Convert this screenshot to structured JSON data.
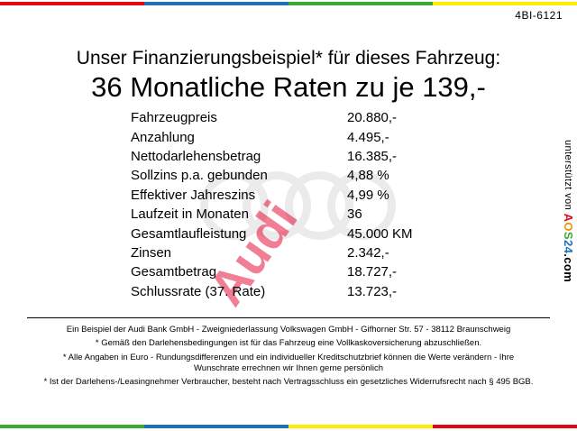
{
  "header": {
    "ref": "4BI-6121",
    "title": "Unser Finanzierungsbeispiel* für dieses Fahrzeug:",
    "subtitle": "36 Monatliche Raten zu je 139,-"
  },
  "table": {
    "rows": [
      {
        "label": "Fahrzeugpreis",
        "value": "20.880,-"
      },
      {
        "label": "Anzahlung",
        "value": "4.495,-"
      },
      {
        "label": "Nettodarlehensbetrag",
        "value": "16.385,-"
      },
      {
        "label": "Sollzins p.a. gebunden",
        "value": "4,88 %"
      },
      {
        "label": "Effektiver Jahreszins",
        "value": "4,99 %"
      },
      {
        "label": "Laufzeit in Monaten",
        "value": "36"
      },
      {
        "label": "Gesamtlaufleistung",
        "value": "45.000 KM"
      },
      {
        "label": "Zinsen",
        "value": "2.342,-"
      },
      {
        "label": "Gesamtbetrag",
        "value": "18.727,-"
      },
      {
        "label": "Schlussrate (37. Rate)",
        "value": "13.723,-"
      }
    ]
  },
  "watermark": {
    "text": "Audi",
    "text_color": "#e4002c",
    "rings_color": "#ebebeb"
  },
  "side": {
    "prefix": "unterstützt von ",
    "brand_letters": [
      {
        "ch": "A",
        "color": "#e30613"
      },
      {
        "ch": "O",
        "color": "#f39200"
      },
      {
        "ch": "S",
        "color": "#3aaa35"
      },
      {
        "ch": "2",
        "color": "#1d71b8"
      },
      {
        "ch": "4",
        "color": "#1d71b8"
      }
    ],
    "suffix": ".com"
  },
  "footer": {
    "lines": [
      "Ein Beispiel der Audi Bank GmbH - Zweigniederlassung Volkswagen GmbH - Gifhorner Str. 57 - 38112 Braunschweig",
      "* Gemäß den Darlehensbedingungen ist für das Fahrzeug eine Vollkaskoversicherung abzuschließen.",
      "* Alle Angaben in Euro - Rundungsdifferenzen und ein individueller Kreditschutzbrief können die Werte verändern - Ihre Wunschrate errechnen wir Ihnen gerne persönlich",
      "* Ist der Darlehens-/Leasingnehmer Verbraucher, besteht nach Vertragsschluss ein gesetzliches Widerrufsrecht nach § 495 BGB."
    ]
  },
  "bars": {
    "top": [
      "#e30613",
      "#1d71b8",
      "#3aaa35",
      "#ffed00"
    ],
    "bottom": [
      "#3aaa35",
      "#1d71b8",
      "#ffed00",
      "#e30613"
    ]
  }
}
